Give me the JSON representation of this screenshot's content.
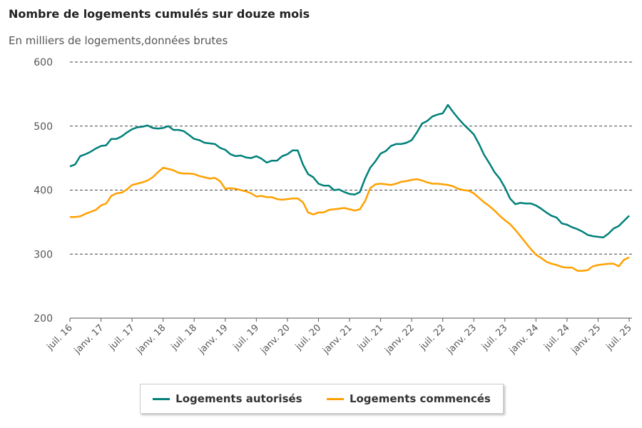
{
  "chart_data": {
    "type": "line",
    "title": "Nombre de logements cumulés sur douze mois",
    "subtitle": "En milliers de logements,données brutes",
    "ylim": [
      200,
      600
    ],
    "yticks": [
      200,
      300,
      400,
      500,
      600
    ],
    "grid": true,
    "legend_position": "bottom",
    "x_start": "2016-07",
    "x_end": "2025-07",
    "xtick_labels": [
      "juil. 16",
      "janv. 17",
      "juil. 17",
      "janv. 18",
      "juil. 18",
      "janv. 19",
      "juil. 19",
      "janv. 20",
      "juil. 20",
      "janv. 21",
      "juil. 21",
      "janv. 22",
      "juil. 22",
      "janv. 23",
      "juil. 23",
      "janv. 24",
      "juil. 24",
      "janv. 25",
      "juil. 25"
    ],
    "series": [
      {
        "name": "Logements autorisés",
        "color": "#00807a",
        "values": [
          437,
          440,
          453,
          456,
          460,
          465,
          469,
          470,
          480,
          480,
          484,
          490,
          495,
          498,
          499,
          501,
          497,
          496,
          497,
          500,
          494,
          494,
          492,
          486,
          480,
          478,
          474,
          473,
          472,
          466,
          463,
          456,
          453,
          454,
          451,
          450,
          453,
          449,
          443,
          446,
          446,
          453,
          456,
          462,
          462,
          440,
          425,
          420,
          410,
          407,
          407,
          400,
          401,
          397,
          394,
          393,
          397,
          418,
          435,
          445,
          457,
          461,
          469,
          472,
          472,
          474,
          478,
          490,
          504,
          508,
          515,
          518,
          520,
          533,
          522,
          512,
          503,
          495,
          487,
          472,
          455,
          442,
          428,
          418,
          404,
          387,
          378,
          380,
          379,
          379,
          376,
          371,
          365,
          360,
          357,
          348,
          346,
          342,
          339,
          335,
          330,
          328,
          327,
          326,
          332,
          340,
          344,
          352,
          360
        ]
      },
      {
        "name": "Logements commencés",
        "color": "#ffa000",
        "values": [
          358,
          358,
          359,
          363,
          366,
          369,
          376,
          379,
          391,
          395,
          396,
          401,
          408,
          410,
          412,
          415,
          420,
          428,
          435,
          433,
          431,
          427,
          426,
          426,
          425,
          422,
          420,
          418,
          419,
          414,
          402,
          403,
          402,
          400,
          398,
          395,
          390,
          391,
          389,
          389,
          386,
          385,
          386,
          387,
          387,
          381,
          365,
          362,
          365,
          365,
          369,
          370,
          371,
          372,
          370,
          368,
          370,
          383,
          403,
          409,
          410,
          409,
          408,
          410,
          413,
          414,
          416,
          417,
          415,
          412,
          410,
          410,
          409,
          408,
          406,
          402,
          400,
          399,
          395,
          388,
          381,
          375,
          368,
          360,
          353,
          347,
          338,
          328,
          318,
          308,
          299,
          294,
          288,
          285,
          283,
          280,
          279,
          279,
          274,
          274,
          275,
          281,
          283,
          284,
          285,
          285,
          281,
          291,
          295
        ]
      }
    ]
  }
}
